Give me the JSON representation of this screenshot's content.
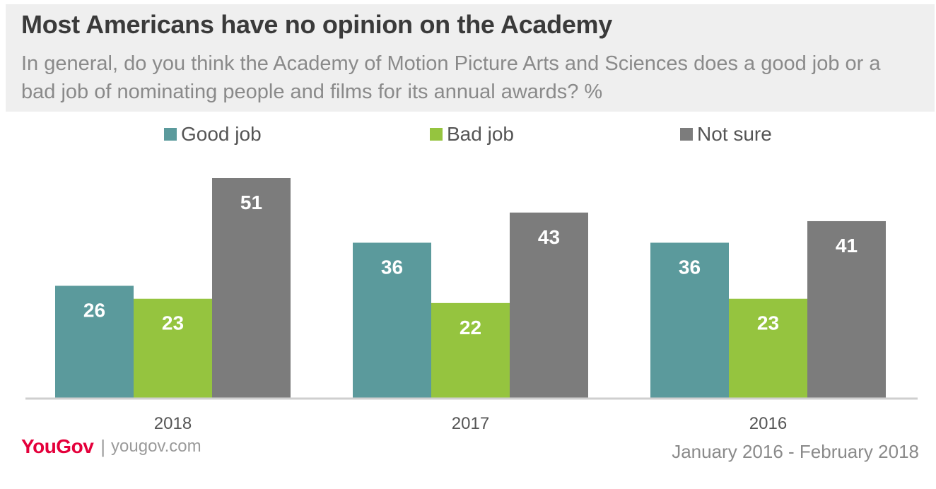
{
  "header": {
    "title": "Most Americans have no opinion on the Academy",
    "subtitle": "In general, do you think the Academy of Motion Picture Arts and Sciences does a good job or a bad job of nominating people and films for its annual awards? %"
  },
  "footer": {
    "logo": "YouGov",
    "url": "yougov.com",
    "date_range": "January 2016 - February 2018"
  },
  "chart_data": {
    "type": "bar",
    "title": "Most Americans have no opinion on the Academy",
    "xlabel": "",
    "ylabel": "",
    "categories": [
      "2018",
      "2017",
      "2016"
    ],
    "series": [
      {
        "name": "Good job",
        "color": "#5b9a9c",
        "values": [
          26,
          36,
          36
        ]
      },
      {
        "name": "Bad job",
        "color": "#95c43f",
        "values": [
          23,
          22,
          23
        ]
      },
      {
        "name": "Not sure",
        "color": "#7c7c7c",
        "values": [
          51,
          43,
          41
        ]
      }
    ],
    "ylim": [
      0,
      51
    ],
    "grid": false,
    "legend_position": "top"
  }
}
